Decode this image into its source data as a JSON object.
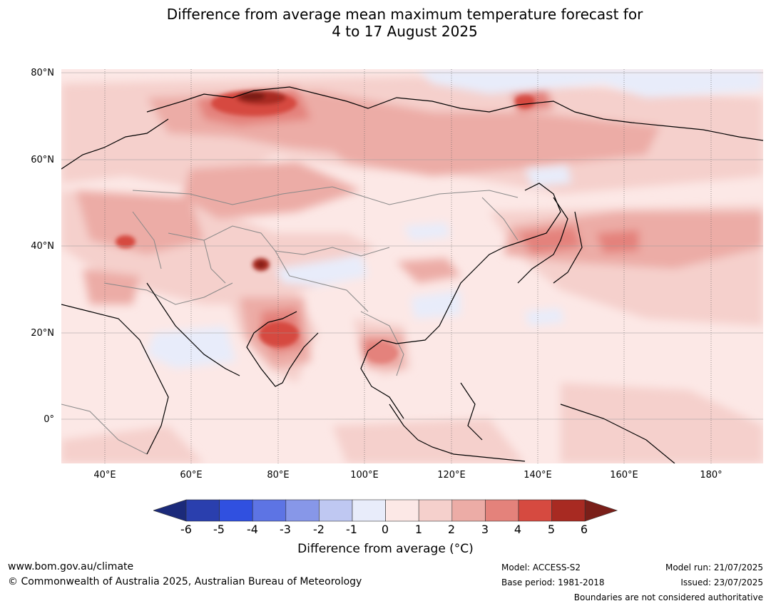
{
  "title": {
    "line1": "Difference from average mean maximum temperature forecast for",
    "line2": "4 to 17 August 2025"
  },
  "map": {
    "lat_labels": [
      "80°N",
      "60°N",
      "40°N",
      "20°N",
      "0°"
    ],
    "lon_labels": [
      "40°E",
      "60°E",
      "80°E",
      "100°E",
      "120°E",
      "140°E",
      "160°E",
      "180°"
    ],
    "extent": {
      "lon": [
        30,
        192
      ],
      "lat": [
        -10,
        81
      ]
    }
  },
  "colorbar": {
    "ticks": [
      "-6",
      "-5",
      "-4",
      "-3",
      "-2",
      "-1",
      "0",
      "1",
      "2",
      "3",
      "4",
      "5",
      "6"
    ],
    "colors": [
      "#1b2a7a",
      "#2a3fae",
      "#3050e0",
      "#5d74e4",
      "#8797e8",
      "#bfc8f2",
      "#e8ecfa",
      "#fce8e6",
      "#f5d0cc",
      "#ecaca6",
      "#e4827b",
      "#d64a40",
      "#a82a22",
      "#7a1f19"
    ],
    "label": "Difference from average (°C)"
  },
  "footer": {
    "url": "www.bom.gov.au/climate",
    "copyright": "© Commonwealth of Australia 2025, Australian Bureau of Meteorology",
    "model": "Model: ACCESS-S2",
    "base_period": "Base period: 1981-2018",
    "model_run": "Model run: 21/07/2025",
    "issued": "Issued: 23/07/2025",
    "disclaimer": "Boundaries are not considered authoritative"
  }
}
